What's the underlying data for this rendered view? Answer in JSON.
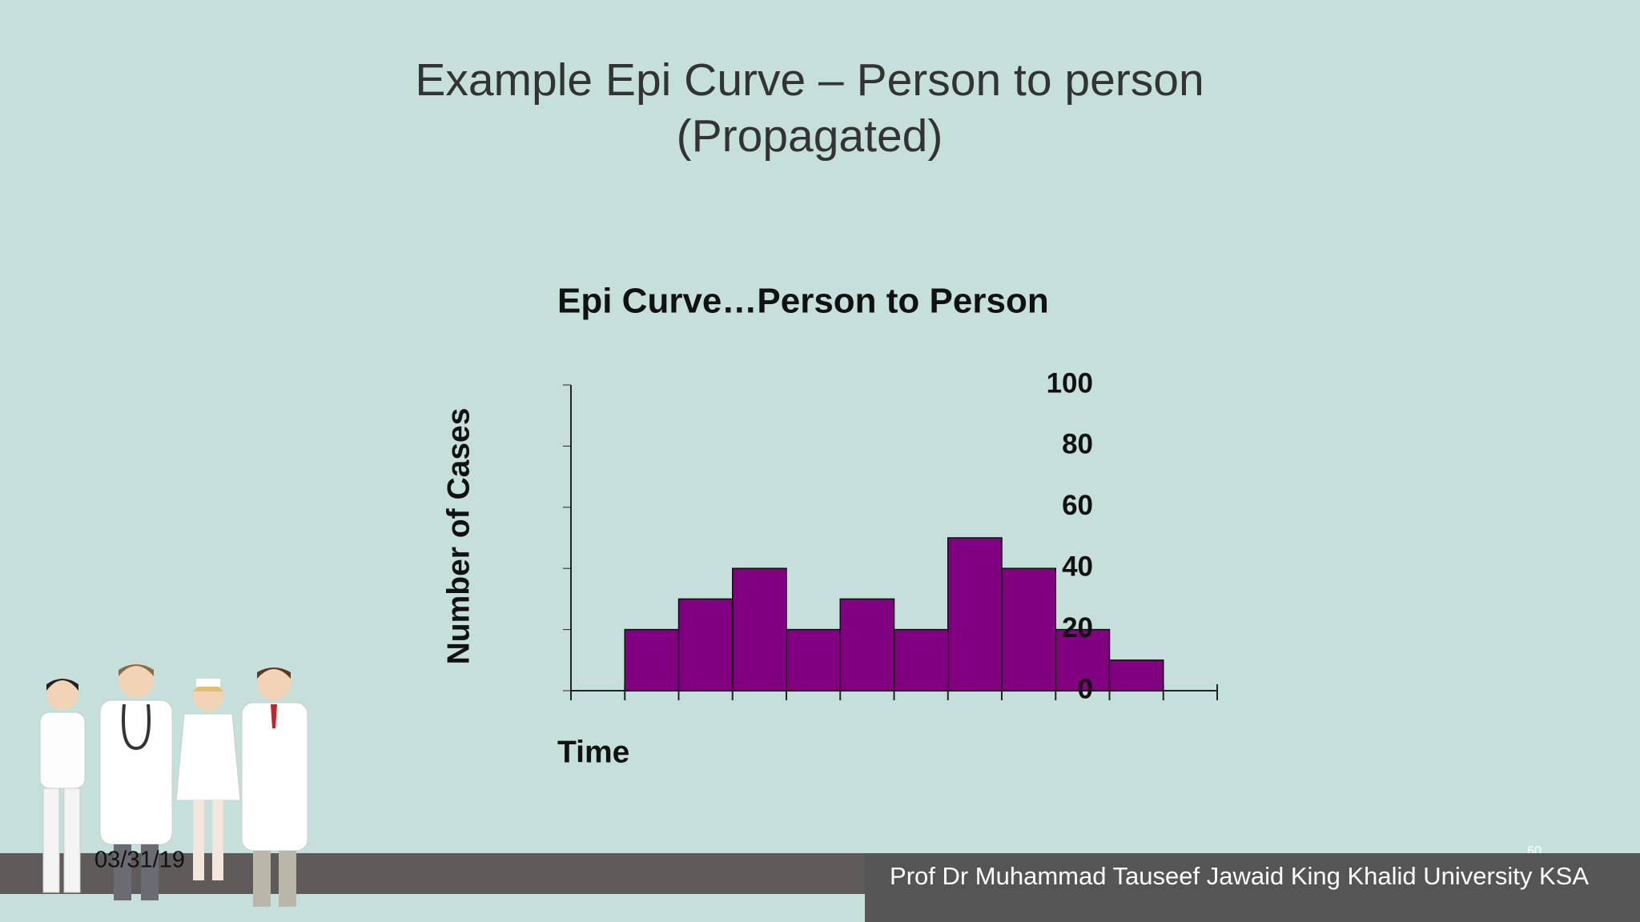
{
  "slide": {
    "title_line1": "Example Epi Curve – Person to person",
    "title_line2": "(Propagated)",
    "date": "03/31/19",
    "footer": "Prof Dr Muhammad Tauseef Jawaid King Khalid University KSA",
    "slide_number": "60"
  },
  "chart_data": {
    "type": "bar",
    "title": "Epi Curve…Person to Person",
    "x_label": "Time",
    "y_label": "Number of Cases",
    "categories": [
      null,
      null,
      null,
      null,
      null,
      null,
      null,
      null,
      null,
      null,
      null,
      null
    ],
    "values": [
      0,
      20,
      30,
      40,
      20,
      30,
      20,
      50,
      40,
      20,
      10,
      0
    ],
    "color": "#800080",
    "ylim": [
      0,
      100
    ],
    "yticks": [
      0,
      20,
      40,
      60,
      80,
      100
    ],
    "grid": false
  }
}
